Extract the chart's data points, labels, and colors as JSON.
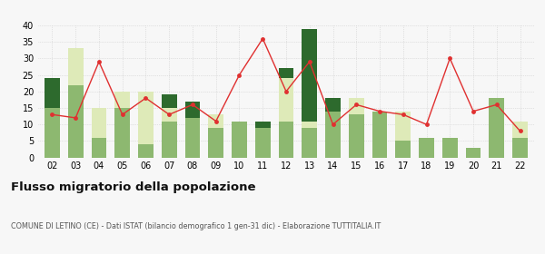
{
  "years": [
    "02",
    "03",
    "04",
    "05",
    "06",
    "07",
    "08",
    "09",
    "10",
    "11",
    "12",
    "13",
    "14",
    "15",
    "16",
    "17",
    "18",
    "19",
    "20",
    "21",
    "22"
  ],
  "iscritti_altri_comuni": [
    15,
    22,
    6,
    15,
    4,
    11,
    12,
    9,
    11,
    9,
    11,
    9,
    14,
    13,
    14,
    5,
    6,
    6,
    3,
    18,
    6
  ],
  "iscritti_estero": [
    0,
    11,
    9,
    5,
    16,
    4,
    0,
    4,
    0,
    0,
    13,
    2,
    0,
    5,
    0,
    9,
    0,
    0,
    0,
    0,
    5
  ],
  "iscritti_altri": [
    9,
    0,
    0,
    0,
    0,
    4,
    5,
    0,
    0,
    2,
    3,
    28,
    4,
    0,
    0,
    0,
    0,
    0,
    0,
    0,
    0
  ],
  "cancellati": [
    13,
    12,
    29,
    13,
    18,
    13,
    16,
    11,
    25,
    36,
    20,
    29,
    10,
    16,
    14,
    13,
    10,
    30,
    14,
    16,
    8
  ],
  "color_altri_comuni": "#8db870",
  "color_estero": "#deeab8",
  "color_altri": "#2d6a2d",
  "color_cancellati": "#e03030",
  "ylim": [
    0,
    40
  ],
  "yticks": [
    0,
    5,
    10,
    15,
    20,
    25,
    30,
    35,
    40
  ],
  "title": "Flusso migratorio della popolazione",
  "subtitle": "COMUNE DI LETINO (CE) - Dati ISTAT (bilancio demografico 1 gen-31 dic) - Elaborazione TUTTITALIA.IT",
  "background_color": "#f7f7f7"
}
